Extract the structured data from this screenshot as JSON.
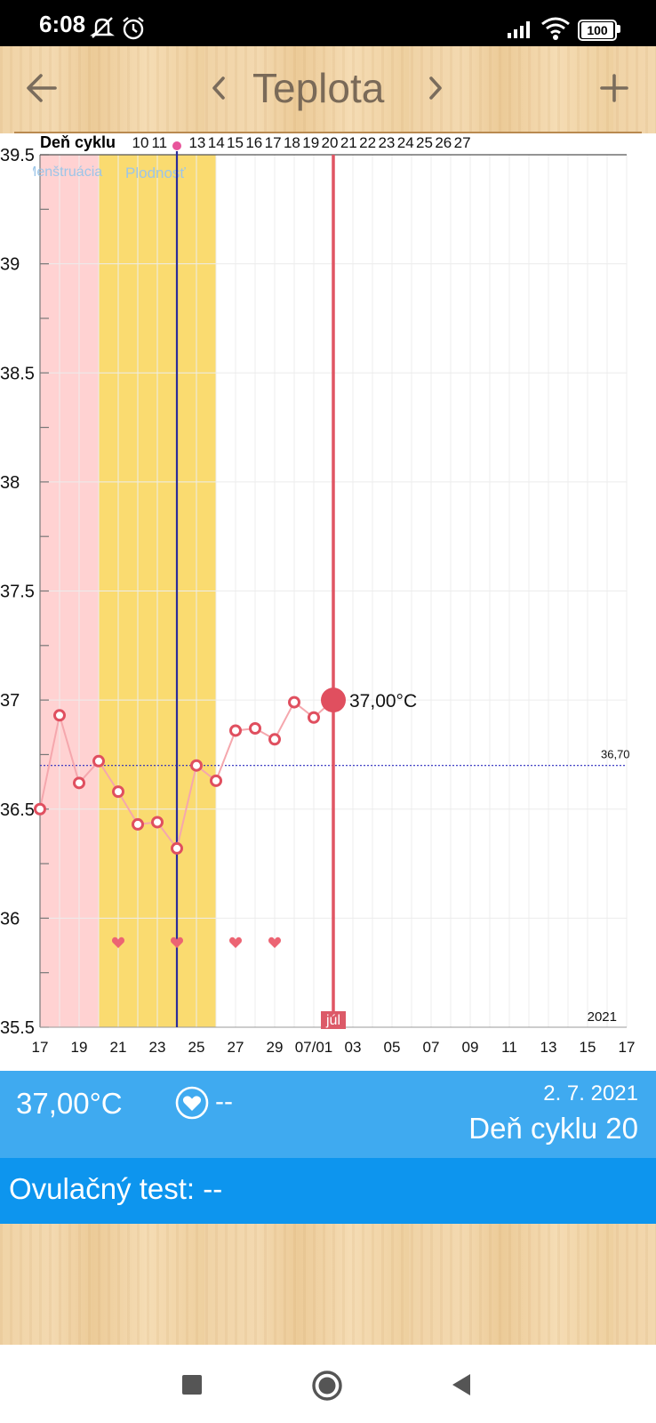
{
  "status_bar": {
    "time": "6:08",
    "battery": "100",
    "icons": [
      "mute-notifications-icon",
      "alarm-icon",
      "signal-icon",
      "wifi-icon",
      "battery-icon"
    ]
  },
  "toolbar": {
    "title": "Teplota",
    "back_icon": "arrow-left-icon",
    "prev_icon": "chevron-left-icon",
    "next_icon": "chevron-right-icon",
    "add_icon": "plus-icon"
  },
  "chart_data": {
    "type": "line",
    "cycle_row_label": "Deň cyklu",
    "cycle_days": [
      "10",
      "11",
      "",
      "13",
      "14",
      "15",
      "16",
      "17",
      "18",
      "19",
      "20",
      "21",
      "22",
      "23",
      "24",
      "25",
      "26",
      "27"
    ],
    "x_tick_labels": [
      "17",
      "19",
      "21",
      "23",
      "25",
      "27",
      "29",
      "07/01",
      "03",
      "05",
      "07",
      "09",
      "11",
      "13",
      "15",
      "17"
    ],
    "ylim": [
      35.5,
      39.5
    ],
    "y_ticks": [
      "39.5",
      "39",
      "38.5",
      "38",
      "37.5",
      "37",
      "36.5",
      "36",
      "35.5"
    ],
    "band_labels": [
      "Menštruácia",
      "Plodnosť"
    ],
    "baseline_label": "36,70",
    "baseline_value": 36.7,
    "year_label": "2021",
    "month_marker": "júl",
    "selected_value_label": "37,00°C",
    "series": [
      {
        "x": [
          "06/17",
          "06/18",
          "06/19",
          "06/20",
          "06/21",
          "06/22",
          "06/23",
          "06/24",
          "06/25",
          "06/26",
          "06/27",
          "06/28",
          "06/29",
          "06/30",
          "07/01",
          "07/02"
        ],
        "values": [
          36.5,
          36.93,
          36.62,
          36.72,
          36.58,
          36.43,
          36.44,
          36.32,
          36.7,
          36.63,
          36.86,
          36.87,
          36.82,
          36.99,
          36.92,
          37.0
        ]
      }
    ],
    "heart_dates": [
      "06/21",
      "06/24",
      "06/27",
      "06/29"
    ]
  },
  "summary": {
    "temperature": "37,00°C",
    "heart_value": "--",
    "date": "2. 7. 2021",
    "cycle_day": "Deň cyklu 20"
  },
  "ovulation_test": {
    "label": "Ovulačný test: --"
  },
  "navbar": {
    "icons": [
      "recents-icon",
      "home-icon",
      "back-icon"
    ]
  }
}
